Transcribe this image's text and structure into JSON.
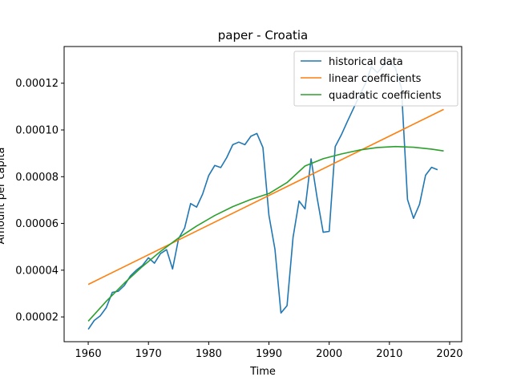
{
  "chart_data": {
    "type": "line",
    "title": "paper - Croatia",
    "xlabel": "Time",
    "ylabel": "Amount per capita",
    "xlim": [
      1956,
      2022
    ],
    "ylim": [
      9.4e-06,
      0.0001357
    ],
    "xticks": [
      1960,
      1970,
      1980,
      1990,
      2000,
      2010,
      2020
    ],
    "xtick_labels": [
      "1960",
      "1970",
      "1980",
      "1990",
      "2000",
      "2010",
      "2020"
    ],
    "yticks": [
      2e-05,
      4e-05,
      6e-05,
      8e-05,
      0.0001,
      0.00012
    ],
    "ytick_labels": [
      "0.00002",
      "0.00004",
      "0.00006",
      "0.00008",
      "0.00010",
      "0.00012"
    ],
    "grid": false,
    "legend_position": "top-right",
    "series": [
      {
        "name": "historical data",
        "color": "#1f77b4",
        "x": [
          1960,
          1961,
          1962,
          1963,
          1964,
          1965,
          1966,
          1967,
          1968,
          1969,
          1970,
          1971,
          1972,
          1973,
          1974,
          1975,
          1976,
          1977,
          1978,
          1979,
          1980,
          1981,
          1982,
          1983,
          1984,
          1985,
          1986,
          1987,
          1988,
          1989,
          1990,
          1991,
          1992,
          1993,
          1994,
          1995,
          1996,
          1997,
          1998,
          1999,
          2000,
          2001,
          2002,
          2003,
          2004,
          2005,
          2006,
          2007,
          2008,
          2009,
          2010,
          2011,
          2012,
          2013,
          2014,
          2015,
          2016,
          2017,
          2018
        ],
        "y": [
          1.47e-05,
          1.85e-05,
          2.05e-05,
          2.4e-05,
          3.05e-05,
          3.1e-05,
          3.35e-05,
          3.75e-05,
          4e-05,
          4.2e-05,
          4.53e-05,
          4.3e-05,
          4.71e-05,
          4.88e-05,
          4.05e-05,
          5.35e-05,
          5.8e-05,
          6.85e-05,
          6.7e-05,
          7.26e-05,
          8.05e-05,
          8.48e-05,
          8.39e-05,
          8.82e-05,
          9.37e-05,
          9.48e-05,
          9.37e-05,
          9.73e-05,
          9.85e-05,
          9.25e-05,
          6.35e-05,
          4.9e-05,
          2.17e-05,
          2.48e-05,
          5.4e-05,
          6.96e-05,
          6.62e-05,
          8.76e-05,
          7.1e-05,
          5.62e-05,
          5.66e-05,
          9.29e-05,
          9.78e-05,
          0.0001035,
          0.000109,
          0.0001145,
          0.0001198,
          0.000127,
          0.0001245,
          0.0001275,
          0.0001295,
          0.0001265,
          0.000118,
          7.02e-05,
          6.22e-05,
          6.82e-05,
          8.06e-05,
          8.4e-05,
          8.3e-05
        ]
      },
      {
        "name": "linear coefficients",
        "color": "#ff7f0e",
        "x": [
          1960,
          2019
        ],
        "y": [
          3.39e-05,
          0.0001088
        ]
      },
      {
        "name": "quadratic coefficients",
        "color": "#2ca02c",
        "x": [
          1960,
          1963,
          1966,
          1969,
          1972,
          1975,
          1978,
          1981,
          1984,
          1987,
          1990,
          1993,
          1996,
          1999,
          2002,
          2005,
          2008,
          2011,
          2014,
          2017,
          2019
        ],
        "y": [
          1.82e-05,
          2.67e-05,
          3.45e-05,
          4.16e-05,
          4.8e-05,
          5.38e-05,
          5.89e-05,
          6.34e-05,
          6.72e-05,
          7.03e-05,
          7.28e-05,
          7.75e-05,
          8.46e-05,
          8.77e-05,
          8.97e-05,
          9.14e-05,
          9.25e-05,
          9.29e-05,
          9.26e-05,
          9.18e-05,
          9.1e-05
        ]
      }
    ]
  }
}
